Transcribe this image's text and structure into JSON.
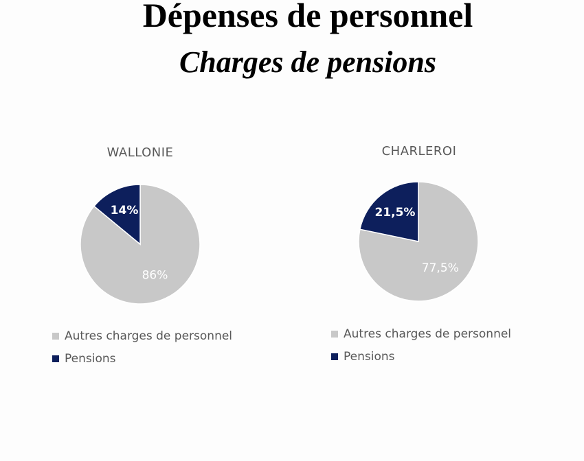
{
  "title": "Dépenses de personnel",
  "subtitle": "Charges de pensions",
  "colors": {
    "other": "#c8c8c8",
    "pensions": "#0d1f5c"
  },
  "chart_data": [
    {
      "type": "pie",
      "title": "WALLONIE",
      "categories": [
        "Autres charges de personnel",
        "Pensions"
      ],
      "values": [
        86,
        14
      ],
      "labels": [
        "86%",
        "14%"
      ],
      "legend_position": "bottom"
    },
    {
      "type": "pie",
      "title": "CHARLEROI",
      "categories": [
        "Autres charges de personnel",
        "Pensions"
      ],
      "values": [
        77.5,
        21.5
      ],
      "labels": [
        "77,5%",
        "21,5%"
      ],
      "legend_position": "bottom"
    }
  ]
}
